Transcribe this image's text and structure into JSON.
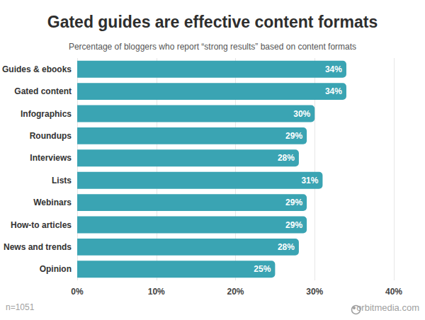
{
  "chart_data": {
    "type": "bar",
    "orientation": "horizontal",
    "title": "Gated guides are effective content formats",
    "subtitle": "Percentage of bloggers who report “strong results” based on content formats",
    "categories": [
      "Guides & ebooks",
      "Gated content",
      "Infographics",
      "Roundups",
      "Interviews",
      "Lists",
      "Webinars",
      "How-to articles",
      "News and trends",
      "Opinion"
    ],
    "values": [
      34,
      34,
      30,
      29,
      28,
      31,
      29,
      29,
      28,
      25
    ],
    "value_labels": [
      "34%",
      "34%",
      "30%",
      "29%",
      "28%",
      "31%",
      "29%",
      "29%",
      "28%",
      "25%"
    ],
    "data_labels": true,
    "color": "#3aa4b3",
    "xlim": [
      0,
      40
    ],
    "xticks": [
      {
        "value": 0,
        "label": "0%"
      },
      {
        "value": 10,
        "label": "10%"
      },
      {
        "value": 20,
        "label": "20%"
      },
      {
        "value": 30,
        "label": "30%"
      },
      {
        "value": 40,
        "label": "40%"
      }
    ],
    "grid": true,
    "annotations": [
      "n=1051",
      "orbitmedia.com"
    ]
  }
}
